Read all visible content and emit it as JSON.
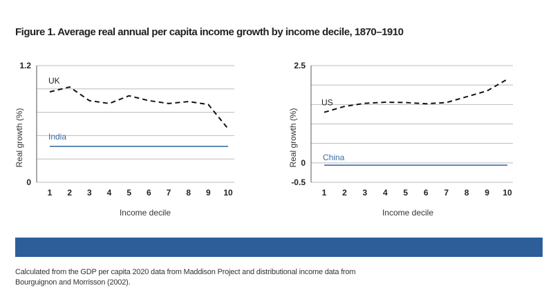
{
  "figure": {
    "title": "Figure 1. Average real annual per capita income growth by income decile, 1870–1910",
    "footnote": "Calculated from the GDP per capita 2020 data from Maddison Project and distributional income data from Bourguignon and Morrisson (2002).",
    "band_color": "#2d5e9a"
  },
  "chart_data": [
    {
      "type": "line",
      "xlabel": "Income decile",
      "ylabel": "Real growth (%)",
      "ylim": [
        0,
        1.2
      ],
      "yticks": [
        0,
        1.2
      ],
      "x": [
        1,
        2,
        3,
        4,
        5,
        6,
        7,
        8,
        9,
        10
      ],
      "grid": true,
      "series": [
        {
          "name": "UK",
          "style": "dashed",
          "color": "#111111",
          "values": [
            0.93,
            0.98,
            0.84,
            0.81,
            0.89,
            0.84,
            0.81,
            0.83,
            0.8,
            0.55
          ]
        },
        {
          "name": "India",
          "style": "solid",
          "color": "#3a6ea5",
          "values": [
            0.37,
            0.37,
            0.37,
            0.37,
            0.37,
            0.37,
            0.37,
            0.37,
            0.37,
            0.37
          ]
        }
      ]
    },
    {
      "type": "line",
      "xlabel": "Income decile",
      "ylabel": "Real growth (%)",
      "ylim": [
        -0.5,
        2.5
      ],
      "yticks": [
        -0.5,
        0,
        2.5
      ],
      "x": [
        1,
        2,
        3,
        4,
        5,
        6,
        7,
        8,
        9,
        10
      ],
      "grid": true,
      "series": [
        {
          "name": "US",
          "style": "dashed",
          "color": "#111111",
          "values": [
            1.3,
            1.45,
            1.53,
            1.56,
            1.55,
            1.52,
            1.55,
            1.7,
            1.85,
            2.15
          ]
        },
        {
          "name": "China",
          "style": "solid",
          "color": "#3a6ea5",
          "values": [
            -0.06,
            -0.06,
            -0.06,
            -0.06,
            -0.06,
            -0.06,
            -0.06,
            -0.06,
            -0.06,
            -0.06
          ]
        }
      ]
    }
  ]
}
